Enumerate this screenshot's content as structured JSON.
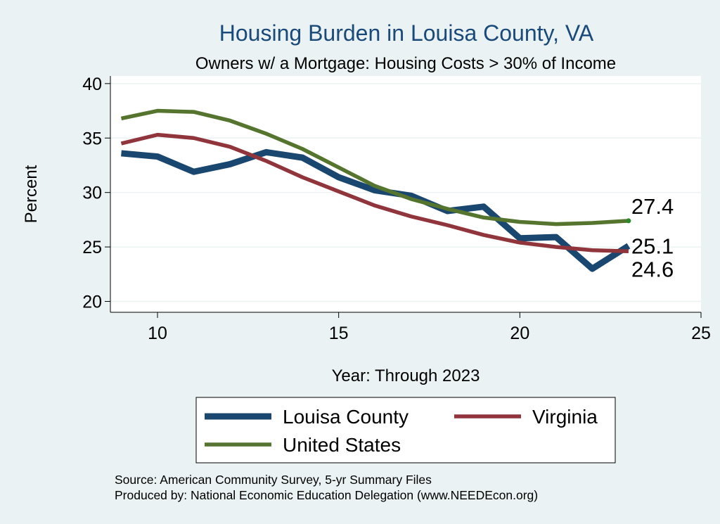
{
  "chart_data": {
    "type": "line",
    "title": "Housing Burden in Louisa County, VA",
    "subtitle": "Owners w/ a Mortgage: Housing Costs > 30% of Income",
    "xlabel": "Year: Through 2023",
    "ylabel": "Percent",
    "xlim": [
      8.7,
      25
    ],
    "ylim": [
      19.0,
      40.7
    ],
    "xticks": [
      10,
      15,
      20,
      25
    ],
    "yticks": [
      20,
      25,
      30,
      35,
      40
    ],
    "grid": true,
    "legend_position": "bottom",
    "series": [
      {
        "name": "Louisa County",
        "color": "#1a476f",
        "x": [
          9,
          10,
          11,
          12,
          13,
          14,
          15,
          16,
          17,
          18,
          19,
          20,
          21,
          22,
          23
        ],
        "y": [
          33.6,
          33.3,
          31.9,
          32.6,
          33.7,
          33.2,
          31.4,
          30.2,
          29.7,
          28.3,
          28.7,
          25.8,
          25.9,
          23.0,
          25.1
        ],
        "end_label": "25.1"
      },
      {
        "name": "Virginia",
        "color": "#90353b",
        "x": [
          9,
          10,
          11,
          12,
          13,
          14,
          15,
          16,
          17,
          18,
          19,
          20,
          21,
          22,
          23
        ],
        "y": [
          34.5,
          35.3,
          35.0,
          34.2,
          32.9,
          31.4,
          30.1,
          28.8,
          27.8,
          27.0,
          26.1,
          25.4,
          25.0,
          24.7,
          24.6
        ],
        "end_label": "24.6"
      },
      {
        "name": "United States",
        "color": "#55752f",
        "x": [
          9,
          10,
          11,
          12,
          13,
          14,
          15,
          16,
          17,
          18,
          19,
          20,
          21,
          22,
          23
        ],
        "y": [
          36.8,
          37.5,
          37.4,
          36.6,
          35.4,
          34.0,
          32.3,
          30.6,
          29.4,
          28.5,
          27.7,
          27.3,
          27.1,
          27.2,
          27.4
        ],
        "end_label": "27.4"
      }
    ]
  },
  "footer": {
    "source": "Source: American Community Survey, 5-yr Summary Files",
    "produced": "Produced by: National Economic Education Delegation (www.NEEDEcon.org)"
  }
}
